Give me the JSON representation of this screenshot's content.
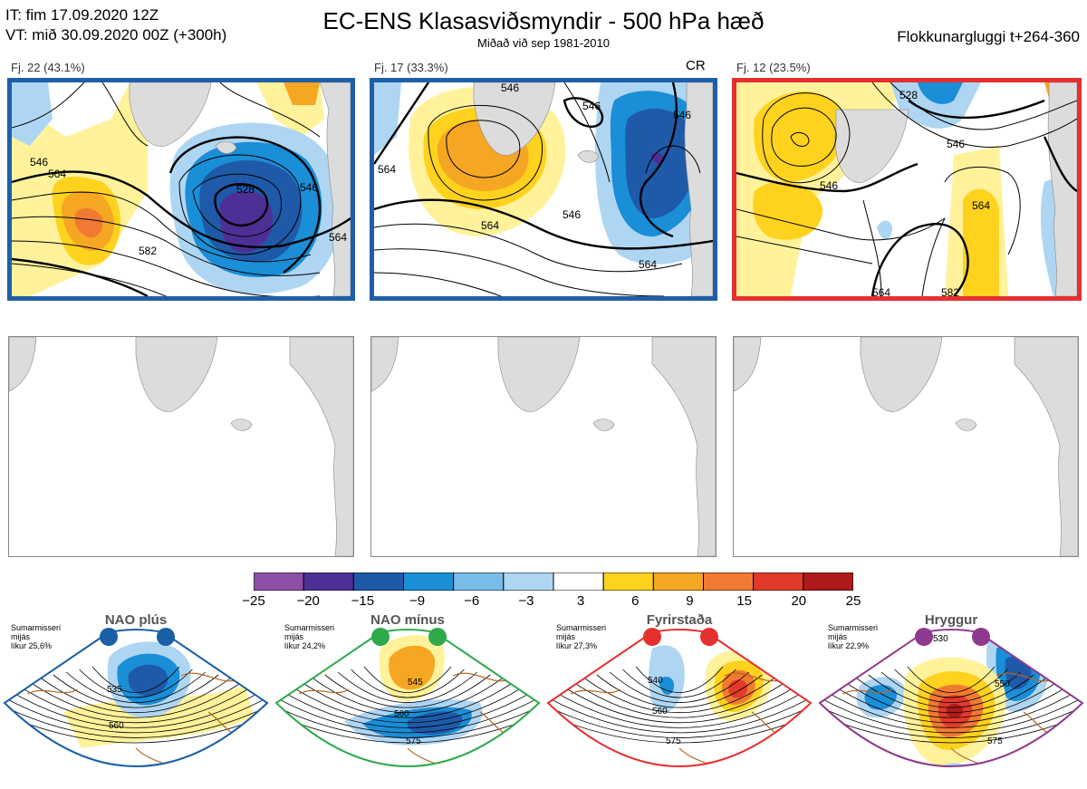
{
  "header": {
    "init_time": "IT: fim 17.09.2020 12Z",
    "valid_time": "VT: mið 30.09.2020 00Z  (+300h)",
    "title": "EC-ENS Klasasviðsmyndir - 500 hPa hæð",
    "subtitle": "Miðað við sep 1981-2010",
    "window": "Flokkunargluggi t+264-360"
  },
  "clusters": [
    {
      "label": "Fj. 22 (43.1%)",
      "border": "#1f5fa8",
      "tag": "",
      "contours": [
        "528",
        "546",
        "564",
        "582",
        "546",
        "564"
      ]
    },
    {
      "label": "Fj. 17 (33.3%)",
      "border": "#1f5fa8",
      "tag": "CR",
      "contours": [
        "546",
        "546",
        "564",
        "564",
        "546",
        "564",
        "546"
      ]
    },
    {
      "label": "Fj. 12 (23.5%)",
      "border": "#e53030",
      "tag": "",
      "contours": [
        "528",
        "546",
        "546",
        "564",
        "564",
        "582"
      ]
    }
  ],
  "colorbar": {
    "colors": [
      "#8e4fa6",
      "#4e2f96",
      "#1e5aa8",
      "#1a8ed6",
      "#78bde9",
      "#aed6f3",
      "#ffffff",
      "#fff29a",
      "#ffd21e",
      "#f5a623",
      "#f07a32",
      "#e23a2a",
      "#b11a1a"
    ],
    "ticks": [
      "−25",
      "−20",
      "−15",
      "−9",
      "−6",
      "−3",
      "3",
      "6",
      "9",
      "15",
      "20",
      "25"
    ]
  },
  "regimes": [
    {
      "name": "NAO plús",
      "season": "Sumarmisseri",
      "kind": "mijás",
      "prob": "líkur 25,6%",
      "color": "#1a5fa8",
      "contours": [
        "535",
        "560"
      ]
    },
    {
      "name": "NAO mínus",
      "season": "Sumarmisseri",
      "kind": "mijás",
      "prob": "líkur 24,2%",
      "color": "#2eaa4a",
      "contours": [
        "545",
        "560",
        "575"
      ]
    },
    {
      "name": "Fyrirstaða",
      "season": "Sumarmisseri",
      "kind": "mijás",
      "prob": "líkur 27,3%",
      "color": "#e53030",
      "contours": [
        "540",
        "560",
        "575"
      ]
    },
    {
      "name": "Hryggur",
      "season": "Sumarmisseri",
      "kind": "mijás",
      "prob": "líkur 22,9%",
      "color": "#8e3a8e",
      "contours": [
        "530",
        "550",
        "575"
      ]
    }
  ]
}
